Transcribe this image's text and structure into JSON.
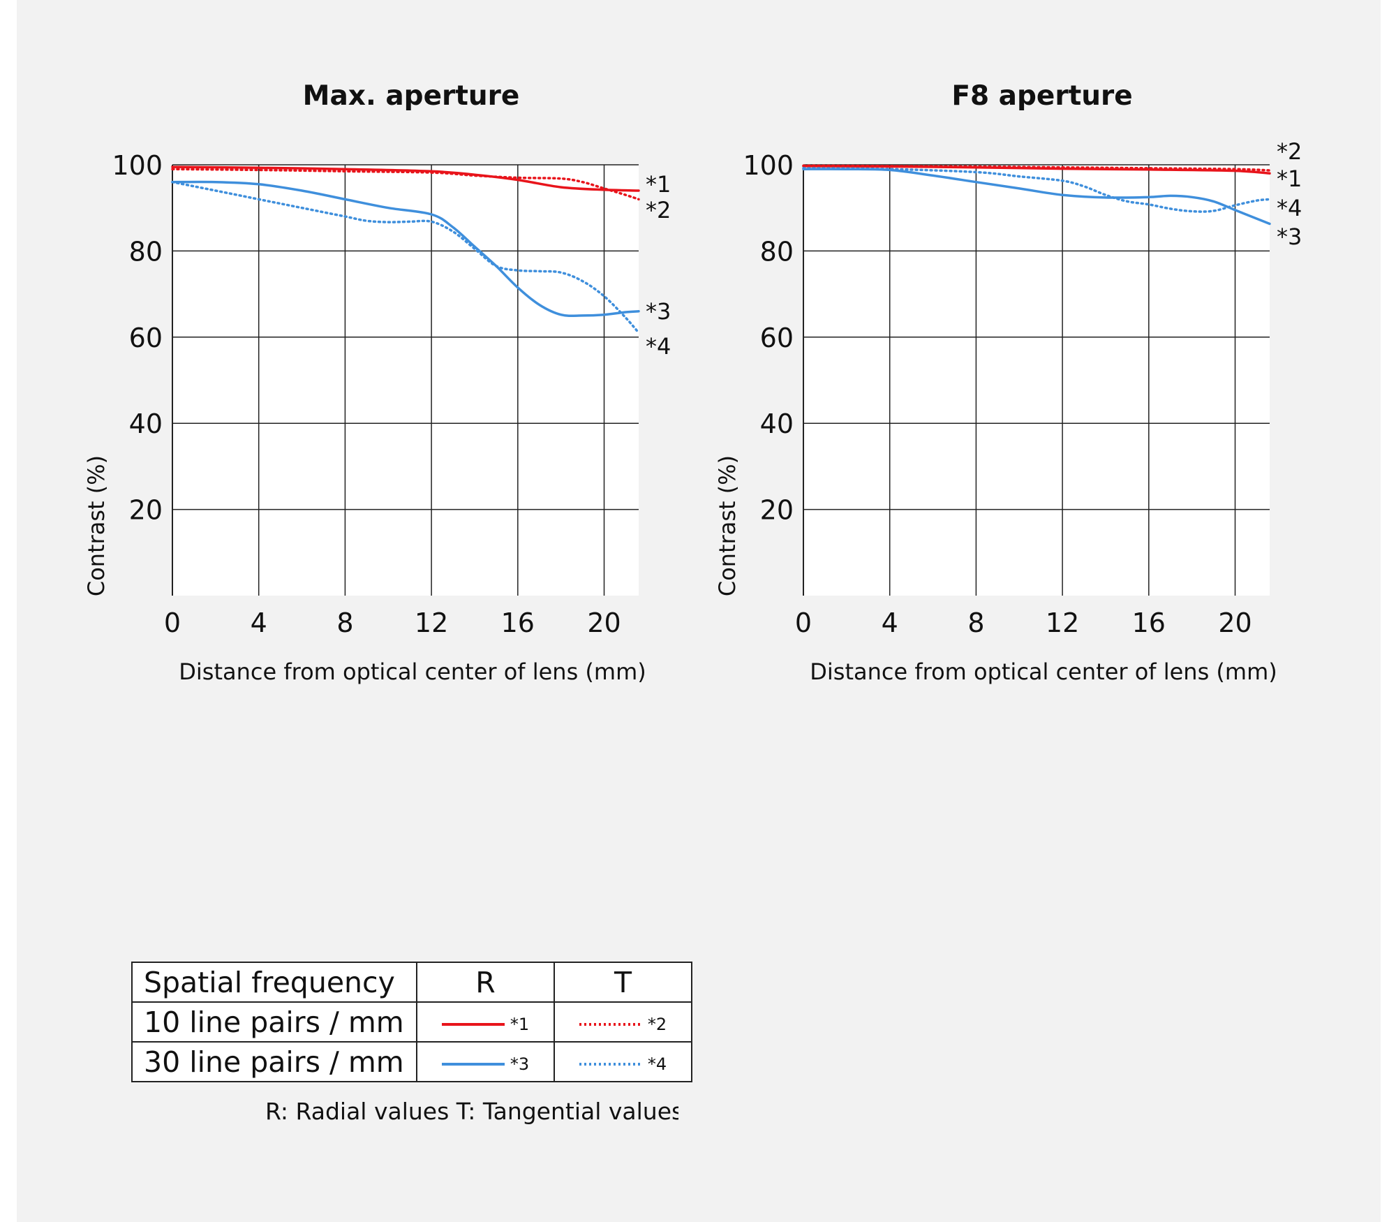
{
  "colors": {
    "radial_10": "#e8141b",
    "tangential_10": "#e8141b",
    "radial_30": "#3f8fdc",
    "tangential_30": "#3f8fdc",
    "grid": "#222222",
    "background": "#f2f2f2"
  },
  "chart_data": [
    {
      "type": "line",
      "title": "Max. aperture",
      "xlabel": "Distance from optical center of lens (mm)",
      "ylabel": "Contrast (%)",
      "xlim": [
        0,
        21.6
      ],
      "ylim": [
        0,
        100
      ],
      "xticks": [
        0,
        4,
        8,
        12,
        16,
        20
      ],
      "yticks": [
        20,
        40,
        60,
        80,
        100
      ],
      "grid": true,
      "series": [
        {
          "name": "*1",
          "style": "solid",
          "color": "#e8141b",
          "x": [
            0,
            4,
            8,
            12,
            14,
            16,
            18,
            20,
            21.6
          ],
          "y": [
            99.5,
            99.3,
            99,
            98.5,
            97.7,
            96.5,
            94.8,
            94.2,
            94
          ]
        },
        {
          "name": "*2",
          "style": "dotted",
          "color": "#e8141b",
          "x": [
            0,
            4,
            8,
            12,
            14,
            16,
            18,
            19,
            20,
            21,
            21.6
          ],
          "y": [
            99,
            98.8,
            98.5,
            98.2,
            97.5,
            97,
            96.8,
            96,
            94.5,
            93,
            92
          ]
        },
        {
          "name": "*3",
          "style": "solid",
          "color": "#3f8fdc",
          "x": [
            0,
            2,
            4,
            6,
            8,
            10,
            12,
            13,
            14,
            15,
            16,
            17,
            18,
            19,
            20,
            21,
            21.6
          ],
          "y": [
            96,
            96,
            95.5,
            94,
            92,
            90,
            88.5,
            85.5,
            81,
            76.5,
            71.5,
            67.5,
            65.2,
            65,
            65.2,
            65.8,
            66
          ]
        },
        {
          "name": "*4",
          "style": "dotted",
          "color": "#3f8fdc",
          "x": [
            0,
            2,
            4,
            6,
            8,
            9,
            10,
            11,
            12,
            13,
            14,
            15,
            16,
            17,
            18,
            19,
            20,
            21,
            21.6
          ],
          "y": [
            96,
            94,
            92,
            90,
            88,
            87,
            86.7,
            86.8,
            86.8,
            84.5,
            80.5,
            76.5,
            75.5,
            75.3,
            75,
            73,
            69.5,
            64.5,
            61
          ]
        }
      ],
      "point_labels": [
        "*1",
        "*2",
        "*3",
        "*4"
      ]
    },
    {
      "type": "line",
      "title": "F8 aperture",
      "xlabel": "Distance from optical center of lens (mm)",
      "ylabel": "Contrast (%)",
      "xlim": [
        0,
        21.6
      ],
      "ylim": [
        0,
        100
      ],
      "xticks": [
        0,
        4,
        8,
        12,
        16,
        20
      ],
      "yticks": [
        20,
        40,
        60,
        80,
        100
      ],
      "grid": true,
      "series": [
        {
          "name": "*1",
          "style": "solid",
          "color": "#e8141b",
          "x": [
            0,
            4,
            8,
            12,
            16,
            20,
            21.6
          ],
          "y": [
            99.7,
            99.6,
            99.4,
            99.1,
            98.9,
            98.6,
            98
          ]
        },
        {
          "name": "*2",
          "style": "dotted",
          "color": "#e8141b",
          "x": [
            0,
            4,
            8,
            12,
            16,
            20,
            21.6
          ],
          "y": [
            99.8,
            99.7,
            99.6,
            99.4,
            99.2,
            99,
            98.7
          ]
        },
        {
          "name": "*3",
          "style": "solid",
          "color": "#3f8fdc",
          "x": [
            0,
            2,
            4,
            6,
            8,
            10,
            12,
            14,
            16,
            17,
            18,
            19,
            20,
            21,
            21.6
          ],
          "y": [
            99,
            99,
            98.8,
            97.5,
            96,
            94.5,
            93,
            92.4,
            92.5,
            92.8,
            92.5,
            91.5,
            89.5,
            87.5,
            86.3
          ]
        },
        {
          "name": "*4",
          "style": "dotted",
          "color": "#3f8fdc",
          "x": [
            0,
            4,
            8,
            10,
            12,
            13,
            14,
            15,
            16,
            17,
            18,
            19,
            20,
            21,
            21.6
          ],
          "y": [
            99.2,
            99,
            98.3,
            97.3,
            96.3,
            95,
            93,
            91.5,
            90.8,
            89.8,
            89.2,
            89.3,
            90.6,
            91.7,
            92
          ]
        }
      ],
      "point_labels": [
        "*2",
        "*1",
        "*4",
        "*3"
      ]
    }
  ],
  "legend": {
    "header": {
      "label": "Spatial frequency",
      "r": "R",
      "t": "T"
    },
    "rows": [
      {
        "label": "10 line pairs / mm",
        "r_ref": "*1",
        "t_ref": "*2"
      },
      {
        "label": "30 line pairs / mm",
        "r_ref": "*3",
        "t_ref": "*4"
      }
    ],
    "note": "R: Radial values  T: Tangential values"
  }
}
